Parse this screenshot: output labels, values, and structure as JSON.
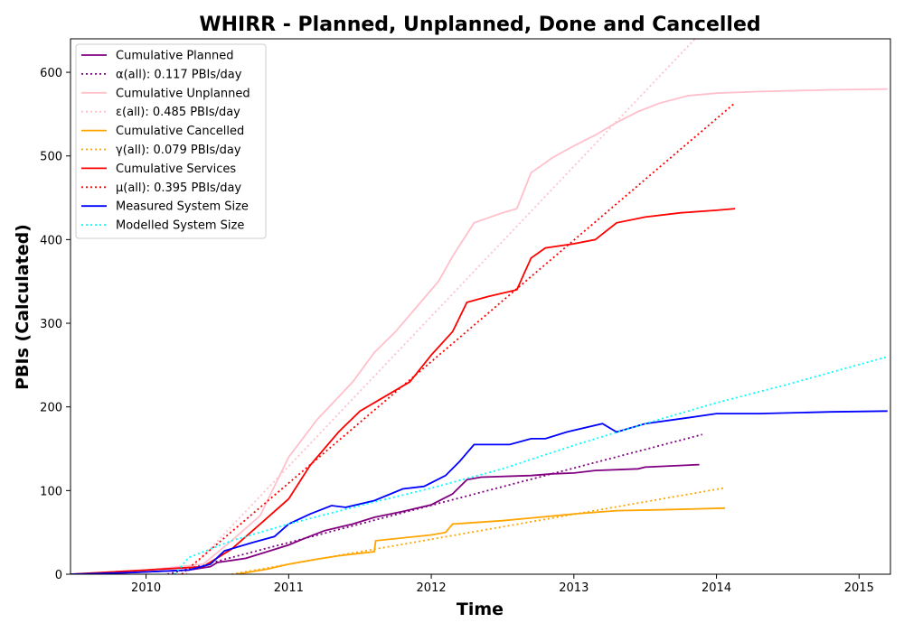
{
  "chart_data": {
    "type": "line",
    "title": "WHIRR - Planned, Unplanned, Done  and Cancelled",
    "xlabel": "Time",
    "ylabel": "PBIs (Calculated)",
    "xlim": [
      2009.47,
      2015.22
    ],
    "ylim": [
      0,
      640
    ],
    "xticks": [
      "2010",
      "2011",
      "2012",
      "2013",
      "2014",
      "2015"
    ],
    "yticks": [
      "0",
      "100",
      "200",
      "300",
      "400",
      "500",
      "600"
    ],
    "grid": false,
    "legend_position": "top-left",
    "series": [
      {
        "name": "Cumulative Planned",
        "color": "#800080",
        "style": "solid",
        "points": [
          [
            2009.47,
            0
          ],
          [
            2009.9,
            2
          ],
          [
            2010.3,
            5
          ],
          [
            2010.45,
            9
          ],
          [
            2010.5,
            14
          ],
          [
            2010.7,
            19
          ],
          [
            2010.85,
            27
          ],
          [
            2011.0,
            35
          ],
          [
            2011.1,
            42
          ],
          [
            2011.25,
            52
          ],
          [
            2011.45,
            60
          ],
          [
            2011.6,
            68
          ],
          [
            2011.8,
            75
          ],
          [
            2012.0,
            83
          ],
          [
            2012.15,
            96
          ],
          [
            2012.25,
            113
          ],
          [
            2012.35,
            116
          ],
          [
            2012.7,
            118
          ],
          [
            2012.85,
            120
          ],
          [
            2013.0,
            121
          ],
          [
            2013.15,
            124
          ],
          [
            2013.45,
            126
          ],
          [
            2013.5,
            128
          ],
          [
            2013.88,
            131
          ]
        ]
      },
      {
        "name": "α(all): 0.117 PBIs/day",
        "color": "#800080",
        "style": "dotted",
        "points": [
          [
            2010.15,
            0
          ],
          [
            2013.9,
            167
          ]
        ]
      },
      {
        "name": "Cumulative Unplanned",
        "color": "#ffc0cb",
        "style": "solid",
        "points": [
          [
            2009.47,
            0
          ],
          [
            2010.0,
            5
          ],
          [
            2010.4,
            12
          ],
          [
            2010.6,
            40
          ],
          [
            2010.8,
            70
          ],
          [
            2011.0,
            140
          ],
          [
            2011.2,
            185
          ],
          [
            2011.45,
            230
          ],
          [
            2011.6,
            265
          ],
          [
            2011.75,
            290
          ],
          [
            2011.9,
            320
          ],
          [
            2012.05,
            350
          ],
          [
            2012.15,
            380
          ],
          [
            2012.3,
            420
          ],
          [
            2012.5,
            432
          ],
          [
            2012.6,
            437
          ],
          [
            2012.7,
            480
          ],
          [
            2012.85,
            498
          ],
          [
            2013.0,
            512
          ],
          [
            2013.15,
            525
          ],
          [
            2013.3,
            540
          ],
          [
            2013.45,
            553
          ],
          [
            2013.6,
            563
          ],
          [
            2013.8,
            572
          ],
          [
            2014.0,
            575
          ],
          [
            2014.3,
            577
          ],
          [
            2014.8,
            579
          ],
          [
            2015.2,
            580
          ]
        ]
      },
      {
        "name": "ε(all): 0.485 PBIs/day",
        "color": "#ffc0cb",
        "style": "dotted",
        "points": [
          [
            2010.28,
            0
          ],
          [
            2013.85,
            640
          ]
        ]
      },
      {
        "name": "Cumulative Cancelled",
        "color": "#ffa500",
        "style": "solid",
        "points": [
          [
            2010.63,
            0
          ],
          [
            2010.85,
            6
          ],
          [
            2011.0,
            12
          ],
          [
            2011.2,
            18
          ],
          [
            2011.35,
            22
          ],
          [
            2011.6,
            27
          ],
          [
            2011.61,
            40
          ],
          [
            2012.0,
            47
          ],
          [
            2012.1,
            50
          ],
          [
            2012.15,
            60
          ],
          [
            2012.5,
            64
          ],
          [
            2012.75,
            68
          ],
          [
            2013.0,
            72
          ],
          [
            2013.3,
            76
          ],
          [
            2013.6,
            77
          ],
          [
            2014.06,
            79
          ]
        ]
      },
      {
        "name": "γ(all): 0.079 PBIs/day",
        "color": "#ffa500",
        "style": "dotted",
        "points": [
          [
            2010.6,
            0
          ],
          [
            2014.05,
            103
          ]
        ]
      },
      {
        "name": "Cumulative Services",
        "color": "#ff0000",
        "style": "solid",
        "points": [
          [
            2009.47,
            0
          ],
          [
            2010.0,
            5
          ],
          [
            2010.4,
            9
          ],
          [
            2010.6,
            30
          ],
          [
            2010.8,
            60
          ],
          [
            2011.0,
            90
          ],
          [
            2011.15,
            130
          ],
          [
            2011.35,
            170
          ],
          [
            2011.5,
            195
          ],
          [
            2011.7,
            215
          ],
          [
            2011.85,
            230
          ],
          [
            2012.0,
            262
          ],
          [
            2012.15,
            290
          ],
          [
            2012.25,
            325
          ],
          [
            2012.4,
            332
          ],
          [
            2012.6,
            340
          ],
          [
            2012.7,
            378
          ],
          [
            2012.8,
            390
          ],
          [
            2013.0,
            395
          ],
          [
            2013.15,
            400
          ],
          [
            2013.3,
            420
          ],
          [
            2013.5,
            427
          ],
          [
            2013.75,
            432
          ],
          [
            2014.0,
            435
          ],
          [
            2014.13,
            437
          ]
        ]
      },
      {
        "name": "μ(all): 0.395 PBIs/day",
        "color": "#ff0000",
        "style": "dotted",
        "points": [
          [
            2010.25,
            0
          ],
          [
            2014.12,
            562
          ]
        ]
      },
      {
        "name": "Measured System Size",
        "color": "#0000ff",
        "style": "solid",
        "points": [
          [
            2009.47,
            0
          ],
          [
            2009.9,
            2
          ],
          [
            2010.3,
            5
          ],
          [
            2010.45,
            12
          ],
          [
            2010.55,
            28
          ],
          [
            2010.75,
            38
          ],
          [
            2010.9,
            45
          ],
          [
            2011.0,
            60
          ],
          [
            2011.15,
            72
          ],
          [
            2011.3,
            82
          ],
          [
            2011.4,
            80
          ],
          [
            2011.6,
            88
          ],
          [
            2011.8,
            102
          ],
          [
            2011.95,
            105
          ],
          [
            2012.1,
            118
          ],
          [
            2012.2,
            135
          ],
          [
            2012.3,
            155
          ],
          [
            2012.55,
            155
          ],
          [
            2012.7,
            162
          ],
          [
            2012.8,
            162
          ],
          [
            2012.95,
            170
          ],
          [
            2013.2,
            180
          ],
          [
            2013.3,
            170
          ],
          [
            2013.5,
            180
          ],
          [
            2013.8,
            187
          ],
          [
            2014.0,
            192
          ],
          [
            2014.3,
            192
          ],
          [
            2014.8,
            194
          ],
          [
            2015.2,
            195
          ]
        ]
      },
      {
        "name": "Modelled System Size",
        "color": "#00ffff",
        "style": "dotted",
        "points": [
          [
            2010.2,
            0
          ],
          [
            2010.3,
            20
          ],
          [
            2010.6,
            40
          ],
          [
            2011.0,
            60
          ],
          [
            2011.5,
            82
          ],
          [
            2012.0,
            103
          ],
          [
            2012.5,
            126
          ],
          [
            2013.0,
            154
          ],
          [
            2013.5,
            180
          ],
          [
            2014.0,
            205
          ],
          [
            2014.5,
            227
          ],
          [
            2015.2,
            260
          ]
        ]
      }
    ]
  }
}
